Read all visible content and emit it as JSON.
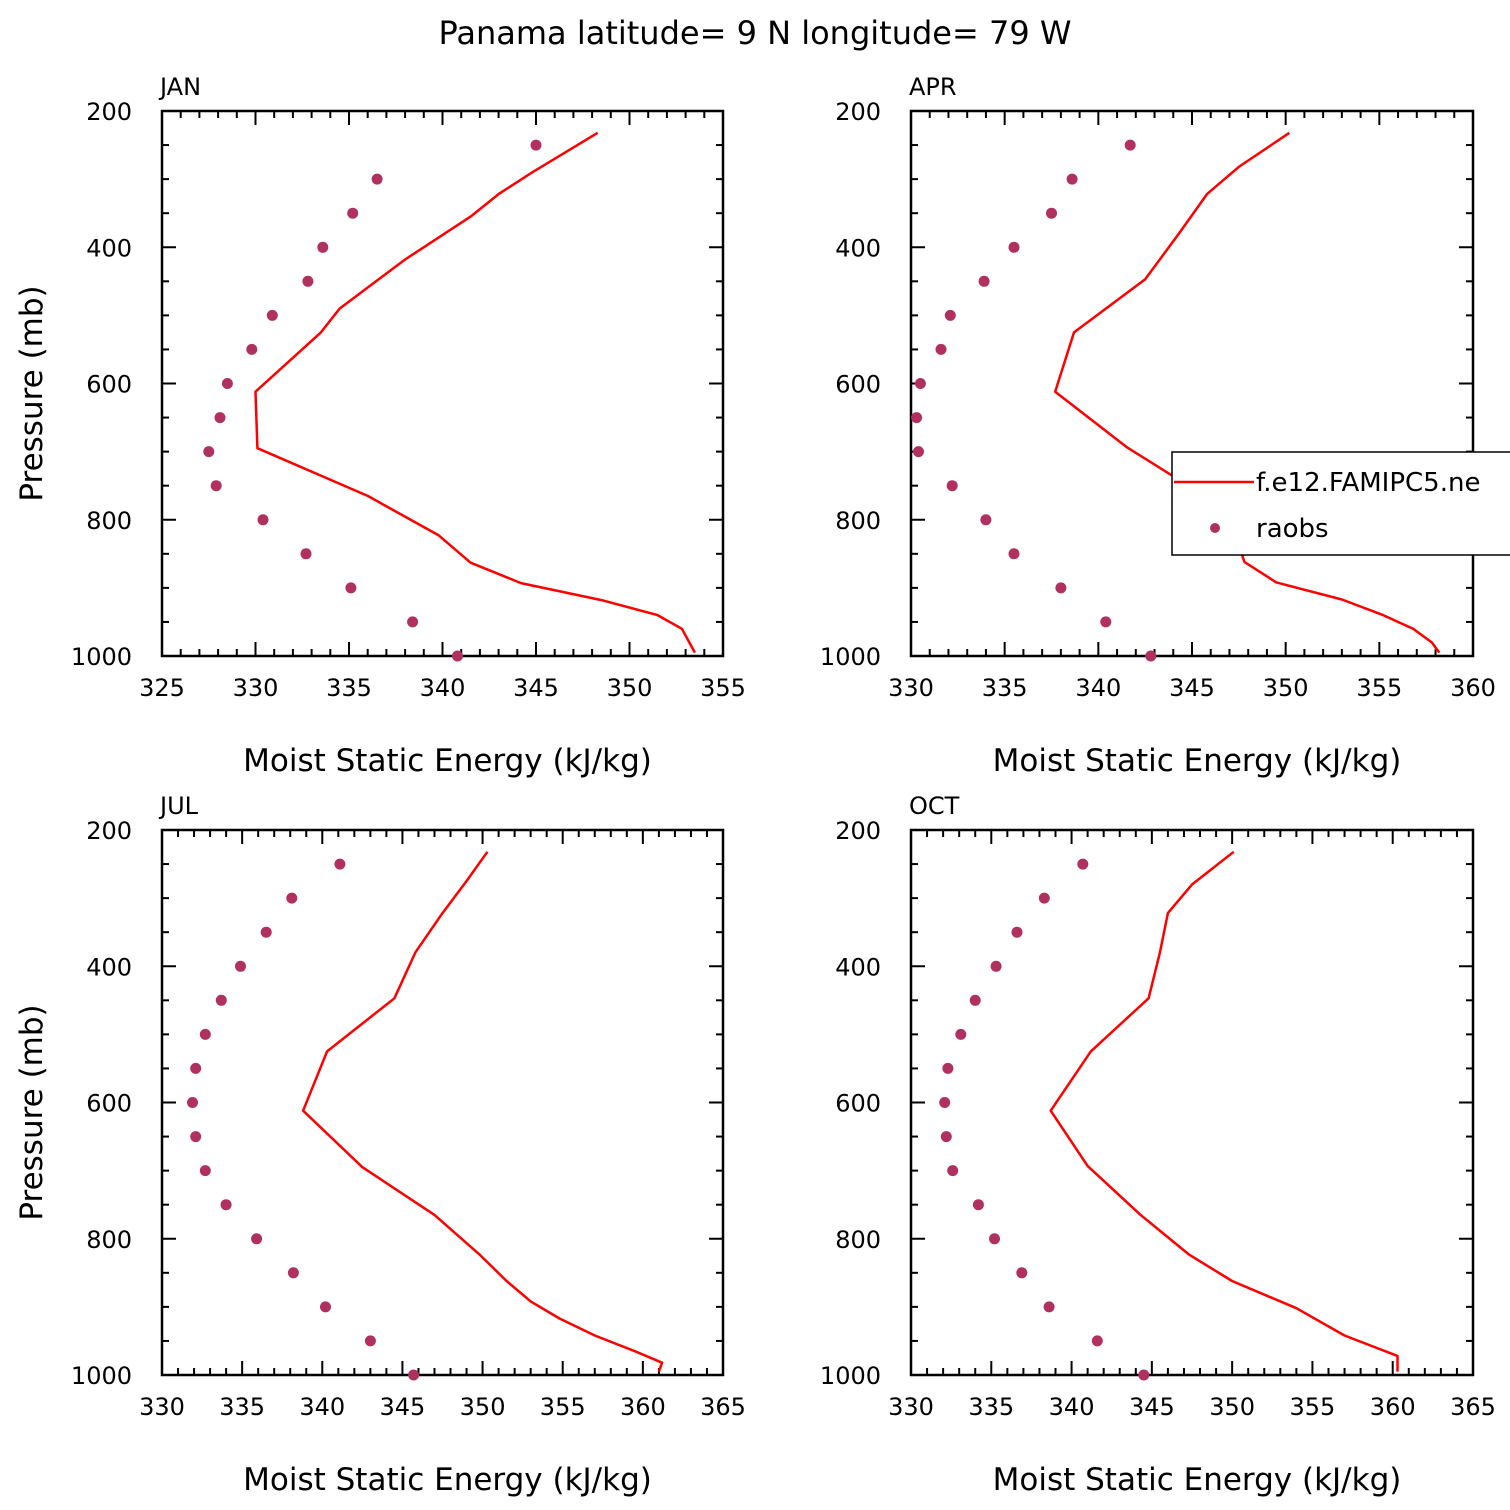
{
  "figure_title": "Panama  latitude= 9 N longitude= 79 W",
  "legend": {
    "model_label": "f.e12.FAMIPC5.ne",
    "obs_label": "raobs"
  },
  "colors": {
    "model": "#ff0000",
    "obs": "#b03060"
  },
  "chart_data": [
    {
      "type": "line",
      "title": "JAN",
      "xlabel": "Moist Static Energy (kJ/kg)",
      "ylabel": "Pressure (mb)",
      "xlim": [
        325,
        355
      ],
      "ylim": [
        200,
        1000
      ],
      "x_ticks": [
        "325",
        "330",
        "335",
        "340",
        "345",
        "350",
        "355"
      ],
      "y_ticks": [
        "200",
        "400",
        "600",
        "800",
        "1000"
      ],
      "series": [
        {
          "kind": "line",
          "points": [
            [
              348.3,
              232
            ],
            [
              344.8,
              290
            ],
            [
              343.0,
              322
            ],
            [
              341.5,
              355
            ],
            [
              338.0,
              418
            ],
            [
              334.5,
              490
            ],
            [
              333.5,
              525
            ],
            [
              330.0,
              612
            ],
            [
              330.1,
              695
            ],
            [
              336.0,
              765
            ],
            [
              339.8,
              823
            ],
            [
              341.5,
              863
            ],
            [
              344.2,
              893
            ],
            [
              348.5,
              918
            ],
            [
              351.5,
              940
            ],
            [
              352.8,
              960
            ],
            [
              353.5,
              995
            ]
          ]
        },
        {
          "kind": "scatter",
          "points": [
            [
              345.0,
              250
            ],
            [
              336.5,
              300
            ],
            [
              335.2,
              350
            ],
            [
              333.6,
              400
            ],
            [
              332.8,
              450
            ],
            [
              330.9,
              500
            ],
            [
              329.8,
              550
            ],
            [
              328.5,
              600
            ],
            [
              328.1,
              650
            ],
            [
              327.5,
              700
            ],
            [
              327.9,
              750
            ],
            [
              330.4,
              800
            ],
            [
              332.7,
              850
            ],
            [
              335.1,
              900
            ],
            [
              338.4,
              950
            ],
            [
              340.8,
              1000
            ]
          ]
        }
      ]
    },
    {
      "type": "line",
      "title": "APR",
      "xlabel": "Moist Static Energy (kJ/kg)",
      "ylabel": "",
      "xlim": [
        330,
        360
      ],
      "ylim": [
        200,
        1000
      ],
      "x_ticks": [
        "330",
        "335",
        "340",
        "345",
        "350",
        "355",
        "360"
      ],
      "y_ticks": [
        "200",
        "400",
        "600",
        "800",
        "1000"
      ],
      "series": [
        {
          "kind": "line",
          "points": [
            [
              350.2,
              232
            ],
            [
              347.5,
              282
            ],
            [
              345.8,
              322
            ],
            [
              344.3,
              380
            ],
            [
              342.5,
              447
            ],
            [
              338.7,
              525
            ],
            [
              337.7,
              612
            ],
            [
              341.5,
              693
            ],
            [
              345.5,
              762
            ],
            [
              347.3,
              823
            ],
            [
              347.8,
              862
            ],
            [
              349.5,
              892
            ],
            [
              353.0,
              917
            ],
            [
              355.2,
              940
            ],
            [
              356.8,
              960
            ],
            [
              357.8,
              980
            ],
            [
              358.2,
              995
            ]
          ]
        },
        {
          "kind": "scatter",
          "points": [
            [
              341.7,
              250
            ],
            [
              338.6,
              300
            ],
            [
              337.5,
              350
            ],
            [
              335.5,
              400
            ],
            [
              333.9,
              450
            ],
            [
              332.1,
              500
            ],
            [
              331.6,
              550
            ],
            [
              330.5,
              600
            ],
            [
              330.3,
              650
            ],
            [
              330.4,
              700
            ],
            [
              332.2,
              750
            ],
            [
              334.0,
              800
            ],
            [
              335.5,
              850
            ],
            [
              338.0,
              900
            ],
            [
              340.4,
              950
            ],
            [
              342.8,
              1000
            ]
          ]
        }
      ]
    },
    {
      "type": "line",
      "title": "JUL",
      "xlabel": "Moist Static Energy (kJ/kg)",
      "ylabel": "Pressure (mb)",
      "xlim": [
        330,
        365
      ],
      "ylim": [
        200,
        1000
      ],
      "x_ticks": [
        "330",
        "335",
        "340",
        "345",
        "350",
        "355",
        "360",
        "365"
      ],
      "y_ticks": [
        "200",
        "400",
        "600",
        "800",
        "1000"
      ],
      "series": [
        {
          "kind": "line",
          "points": [
            [
              350.3,
              232
            ],
            [
              349.0,
              275
            ],
            [
              347.5,
              322
            ],
            [
              345.8,
              380
            ],
            [
              344.5,
              447
            ],
            [
              340.3,
              525
            ],
            [
              338.8,
              612
            ],
            [
              342.5,
              695
            ],
            [
              347.0,
              765
            ],
            [
              349.8,
              823
            ],
            [
              351.5,
              862
            ],
            [
              353.0,
              892
            ],
            [
              354.8,
              917
            ],
            [
              357.0,
              942
            ],
            [
              359.5,
              965
            ],
            [
              361.2,
              982
            ],
            [
              361.0,
              995
            ]
          ]
        },
        {
          "kind": "scatter",
          "points": [
            [
              341.1,
              250
            ],
            [
              338.1,
              300
            ],
            [
              336.5,
              350
            ],
            [
              334.9,
              400
            ],
            [
              333.7,
              450
            ],
            [
              332.7,
              500
            ],
            [
              332.1,
              550
            ],
            [
              331.9,
              600
            ],
            [
              332.1,
              650
            ],
            [
              332.7,
              700
            ],
            [
              334.0,
              750
            ],
            [
              335.9,
              800
            ],
            [
              338.2,
              850
            ],
            [
              340.2,
              900
            ],
            [
              343.0,
              950
            ],
            [
              345.7,
              1000
            ]
          ]
        }
      ]
    },
    {
      "type": "line",
      "title": "OCT",
      "xlabel": "Moist Static Energy (kJ/kg)",
      "ylabel": "",
      "xlim": [
        330,
        365
      ],
      "ylim": [
        200,
        1000
      ],
      "x_ticks": [
        "330",
        "335",
        "340",
        "345",
        "350",
        "355",
        "360",
        "365"
      ],
      "y_ticks": [
        "200",
        "400",
        "600",
        "800",
        "1000"
      ],
      "series": [
        {
          "kind": "line",
          "points": [
            [
              350.1,
              232
            ],
            [
              347.5,
              280
            ],
            [
              346.0,
              322
            ],
            [
              345.5,
              380
            ],
            [
              344.8,
              447
            ],
            [
              341.2,
              525
            ],
            [
              338.7,
              612
            ],
            [
              341.0,
              693
            ],
            [
              344.3,
              765
            ],
            [
              347.3,
              823
            ],
            [
              350.0,
              862
            ],
            [
              354.0,
              902
            ],
            [
              357.0,
              942
            ],
            [
              360.3,
              972
            ],
            [
              360.3,
              995
            ]
          ]
        },
        {
          "kind": "scatter",
          "points": [
            [
              340.7,
              250
            ],
            [
              338.3,
              300
            ],
            [
              336.6,
              350
            ],
            [
              335.3,
              400
            ],
            [
              334.0,
              450
            ],
            [
              333.1,
              500
            ],
            [
              332.3,
              550
            ],
            [
              332.1,
              600
            ],
            [
              332.2,
              650
            ],
            [
              332.6,
              700
            ],
            [
              334.2,
              750
            ],
            [
              335.2,
              800
            ],
            [
              336.9,
              850
            ],
            [
              338.6,
              900
            ],
            [
              341.6,
              950
            ],
            [
              344.5,
              1000
            ]
          ]
        }
      ]
    }
  ]
}
